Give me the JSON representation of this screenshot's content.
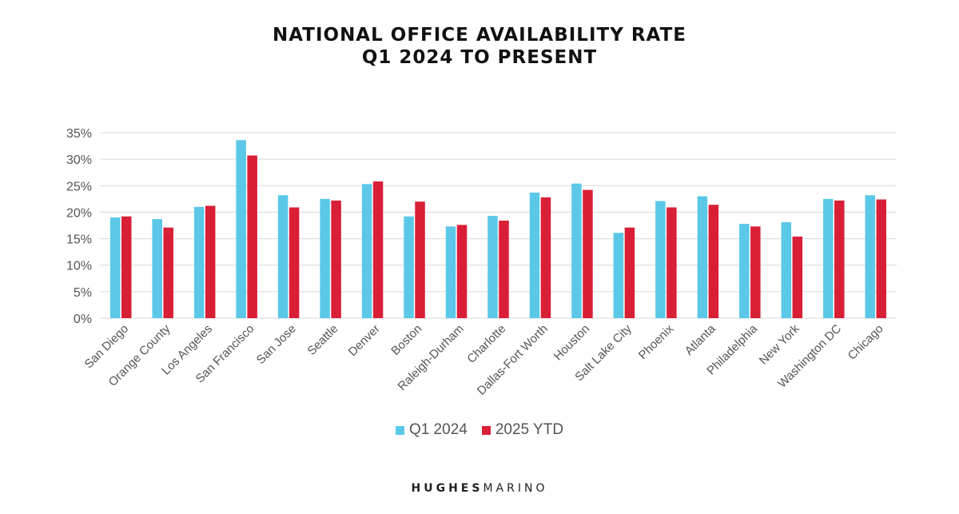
{
  "chart_data": {
    "type": "bar",
    "title": "NATIONAL OFFICE AVAILABILITY RATE",
    "subtitle": "Q1 2024 TO PRESENT",
    "categories": [
      "San Diego",
      "Orange County",
      "Los Angeles",
      "San Francisco",
      "San Jose",
      "Seattle",
      "Denver",
      "Boston",
      "Raleigh-Durham",
      "Charlotte",
      "Dallas-Fort Worth",
      "Houston",
      "Salt Lake City",
      "Phoenix",
      "Atlanta",
      "Philadelphia",
      "New York",
      "Washington DC",
      "Chicago"
    ],
    "series": [
      {
        "name": "Q1 2024",
        "color": "#5BC8E8",
        "values": [
          19.0,
          18.7,
          21.0,
          33.6,
          23.2,
          22.5,
          25.3,
          19.2,
          17.3,
          19.3,
          23.7,
          25.4,
          16.1,
          22.1,
          23.0,
          17.8,
          18.1,
          22.5,
          23.2
        ]
      },
      {
        "name": "2025 YTD",
        "color": "#D91F36",
        "values": [
          19.2,
          17.1,
          21.2,
          30.7,
          20.9,
          22.2,
          25.8,
          22.0,
          17.6,
          18.4,
          22.8,
          24.2,
          17.1,
          20.9,
          21.4,
          17.3,
          15.4,
          22.2,
          22.4
        ]
      }
    ],
    "ylim": [
      0,
      35
    ],
    "yticks": [
      0,
      5,
      10,
      15,
      20,
      25,
      30,
      35
    ],
    "ytick_labels": [
      "0%",
      "5%",
      "10%",
      "15%",
      "20%",
      "25%",
      "30%",
      "35%"
    ],
    "grid": true,
    "legend_position": "bottom-center"
  },
  "brand": {
    "part1": "HUGHES",
    "part2": "MARINO"
  }
}
